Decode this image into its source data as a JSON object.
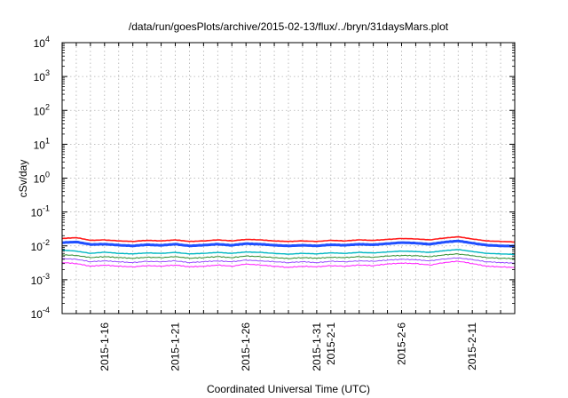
{
  "chart_data": {
    "type": "line",
    "title": "/data/run/goesPlots/archive/2015-02-13/flux/../bryn/31daysMars.plot",
    "xlabel": "Coordinated Universal Time (UTC)",
    "ylabel": "cSv/day",
    "yscale": "log",
    "ylim": [
      0.0001,
      10000
    ],
    "xlim": [
      "2015-01-13",
      "2015-02-14"
    ],
    "grid": true,
    "y_ticks": [
      {
        "base": "10",
        "exp": "4",
        "value": 10000
      },
      {
        "base": "10",
        "exp": "3",
        "value": 1000
      },
      {
        "base": "10",
        "exp": "2",
        "value": 100
      },
      {
        "base": "10",
        "exp": "1",
        "value": 10
      },
      {
        "base": "10",
        "exp": "0",
        "value": 1
      },
      {
        "base": "10",
        "exp": "-1",
        "value": 0.1
      },
      {
        "base": "10",
        "exp": "-2",
        "value": 0.01
      },
      {
        "base": "10",
        "exp": "-3",
        "value": 0.001
      },
      {
        "base": "10",
        "exp": "-4",
        "value": 0.0001
      }
    ],
    "x_ticks": [
      "2015-1-16",
      "2015-1-21",
      "2015-1-26",
      "2015-1-31",
      "2015-2-1",
      "2015-2-6",
      "2015-2-11"
    ],
    "series_style": [
      {
        "color": "#ff1a1a",
        "width": 1.6
      },
      {
        "color": "#1f4fff",
        "width": 3.0
      },
      {
        "color": "#00b7c3",
        "width": 1.4
      },
      {
        "color": "#2e8b2e",
        "width": 1.0
      },
      {
        "color": "#9a4dff",
        "width": 1.0
      },
      {
        "color": "#ff1aff",
        "width": 1.0
      }
    ],
    "series": [
      {
        "values": [
          [
            "2015-01-13",
            0.0165
          ],
          [
            "2015-01-14",
            0.0175
          ],
          [
            "2015-01-15",
            0.0145
          ],
          [
            "2015-01-16",
            0.015
          ],
          [
            "2015-01-17",
            0.014
          ],
          [
            "2015-01-18",
            0.0135
          ],
          [
            "2015-01-19",
            0.0145
          ],
          [
            "2015-01-20",
            0.014
          ],
          [
            "2015-01-21",
            0.015
          ],
          [
            "2015-01-22",
            0.0135
          ],
          [
            "2015-01-23",
            0.014
          ],
          [
            "2015-01-24",
            0.015
          ],
          [
            "2015-01-25",
            0.014
          ],
          [
            "2015-01-26",
            0.0155
          ],
          [
            "2015-01-27",
            0.015
          ],
          [
            "2015-01-28",
            0.014
          ],
          [
            "2015-01-29",
            0.0135
          ],
          [
            "2015-01-30",
            0.014
          ],
          [
            "2015-01-31",
            0.0135
          ],
          [
            "2015-02-01",
            0.0145
          ],
          [
            "2015-02-02",
            0.014
          ],
          [
            "2015-02-03",
            0.015
          ],
          [
            "2015-02-04",
            0.0145
          ],
          [
            "2015-02-05",
            0.0155
          ],
          [
            "2015-02-06",
            0.0165
          ],
          [
            "2015-02-07",
            0.016
          ],
          [
            "2015-02-08",
            0.015
          ],
          [
            "2015-02-09",
            0.017
          ],
          [
            "2015-02-10",
            0.0185
          ],
          [
            "2015-02-11",
            0.016
          ],
          [
            "2015-02-12",
            0.014
          ],
          [
            "2015-02-13",
            0.0135
          ],
          [
            "2015-02-14",
            0.013
          ]
        ]
      },
      {
        "values": [
          [
            "2015-01-13",
            0.0125
          ],
          [
            "2015-01-14",
            0.013
          ],
          [
            "2015-01-15",
            0.011
          ],
          [
            "2015-01-16",
            0.0112
          ],
          [
            "2015-01-17",
            0.0105
          ],
          [
            "2015-01-18",
            0.01
          ],
          [
            "2015-01-19",
            0.0108
          ],
          [
            "2015-01-20",
            0.0104
          ],
          [
            "2015-01-21",
            0.0112
          ],
          [
            "2015-01-22",
            0.01
          ],
          [
            "2015-01-23",
            0.0105
          ],
          [
            "2015-01-24",
            0.0112
          ],
          [
            "2015-01-25",
            0.0104
          ],
          [
            "2015-01-26",
            0.0116
          ],
          [
            "2015-01-27",
            0.0112
          ],
          [
            "2015-01-28",
            0.0104
          ],
          [
            "2015-01-29",
            0.01
          ],
          [
            "2015-01-30",
            0.0104
          ],
          [
            "2015-01-31",
            0.01
          ],
          [
            "2015-02-01",
            0.0108
          ],
          [
            "2015-02-02",
            0.0104
          ],
          [
            "2015-02-03",
            0.0112
          ],
          [
            "2015-02-04",
            0.0108
          ],
          [
            "2015-02-05",
            0.0116
          ],
          [
            "2015-02-06",
            0.0125
          ],
          [
            "2015-02-07",
            0.012
          ],
          [
            "2015-02-08",
            0.0112
          ],
          [
            "2015-02-09",
            0.0128
          ],
          [
            "2015-02-10",
            0.014
          ],
          [
            "2015-02-11",
            0.012
          ],
          [
            "2015-02-12",
            0.0105
          ],
          [
            "2015-02-13",
            0.01
          ],
          [
            "2015-02-14",
            0.0098
          ]
        ]
      },
      {
        "values": [
          [
            "2015-01-13",
            0.0075
          ],
          [
            "2015-01-14",
            0.007
          ],
          [
            "2015-01-15",
            0.006
          ],
          [
            "2015-01-16",
            0.0065
          ],
          [
            "2015-01-17",
            0.006
          ],
          [
            "2015-01-18",
            0.0058
          ],
          [
            "2015-01-19",
            0.0062
          ],
          [
            "2015-01-20",
            0.006
          ],
          [
            "2015-01-21",
            0.0064
          ],
          [
            "2015-01-22",
            0.0058
          ],
          [
            "2015-01-23",
            0.006
          ],
          [
            "2015-01-24",
            0.0064
          ],
          [
            "2015-01-25",
            0.006
          ],
          [
            "2015-01-26",
            0.0066
          ],
          [
            "2015-01-27",
            0.0064
          ],
          [
            "2015-01-28",
            0.006
          ],
          [
            "2015-01-29",
            0.0057
          ],
          [
            "2015-01-30",
            0.006
          ],
          [
            "2015-01-31",
            0.0058
          ],
          [
            "2015-02-01",
            0.0062
          ],
          [
            "2015-02-02",
            0.006
          ],
          [
            "2015-02-03",
            0.0064
          ],
          [
            "2015-02-04",
            0.0062
          ],
          [
            "2015-02-05",
            0.0066
          ],
          [
            "2015-02-06",
            0.007
          ],
          [
            "2015-02-07",
            0.0068
          ],
          [
            "2015-02-08",
            0.0064
          ],
          [
            "2015-02-09",
            0.0072
          ],
          [
            "2015-02-10",
            0.0078
          ],
          [
            "2015-02-11",
            0.0068
          ],
          [
            "2015-02-12",
            0.006
          ],
          [
            "2015-02-13",
            0.0058
          ],
          [
            "2015-02-14",
            0.0056
          ]
        ]
      },
      {
        "values": [
          [
            "2015-01-13",
            0.0055
          ],
          [
            "2015-01-14",
            0.0052
          ],
          [
            "2015-01-15",
            0.0045
          ],
          [
            "2015-01-16",
            0.0048
          ],
          [
            "2015-01-17",
            0.0045
          ],
          [
            "2015-01-18",
            0.0043
          ],
          [
            "2015-01-19",
            0.0046
          ],
          [
            "2015-01-20",
            0.0045
          ],
          [
            "2015-01-21",
            0.0048
          ],
          [
            "2015-01-22",
            0.0043
          ],
          [
            "2015-01-23",
            0.0045
          ],
          [
            "2015-01-24",
            0.0048
          ],
          [
            "2015-01-25",
            0.0045
          ],
          [
            "2015-01-26",
            0.005
          ],
          [
            "2015-01-27",
            0.0048
          ],
          [
            "2015-01-28",
            0.0045
          ],
          [
            "2015-01-29",
            0.0042
          ],
          [
            "2015-01-30",
            0.0045
          ],
          [
            "2015-01-31",
            0.0043
          ],
          [
            "2015-02-01",
            0.0046
          ],
          [
            "2015-02-02",
            0.0045
          ],
          [
            "2015-02-03",
            0.0048
          ],
          [
            "2015-02-04",
            0.0046
          ],
          [
            "2015-02-05",
            0.005
          ],
          [
            "2015-02-06",
            0.0052
          ],
          [
            "2015-02-07",
            0.0051
          ],
          [
            "2015-02-08",
            0.0048
          ],
          [
            "2015-02-09",
            0.0054
          ],
          [
            "2015-02-10",
            0.0058
          ],
          [
            "2015-02-11",
            0.0051
          ],
          [
            "2015-02-12",
            0.0045
          ],
          [
            "2015-02-13",
            0.0043
          ],
          [
            "2015-02-14",
            0.0042
          ]
        ]
      },
      {
        "values": [
          [
            "2015-01-13",
            0.0042
          ],
          [
            "2015-01-14",
            0.004
          ],
          [
            "2015-01-15",
            0.0034
          ],
          [
            "2015-01-16",
            0.0036
          ],
          [
            "2015-01-17",
            0.0034
          ],
          [
            "2015-01-18",
            0.0032
          ],
          [
            "2015-01-19",
            0.0035
          ],
          [
            "2015-01-20",
            0.0034
          ],
          [
            "2015-01-21",
            0.0036
          ],
          [
            "2015-01-22",
            0.0032
          ],
          [
            "2015-01-23",
            0.0034
          ],
          [
            "2015-01-24",
            0.0036
          ],
          [
            "2015-01-25",
            0.0034
          ],
          [
            "2015-01-26",
            0.0038
          ],
          [
            "2015-01-27",
            0.0036
          ],
          [
            "2015-01-28",
            0.0034
          ],
          [
            "2015-01-29",
            0.0032
          ],
          [
            "2015-01-30",
            0.0034
          ],
          [
            "2015-01-31",
            0.0032
          ],
          [
            "2015-02-01",
            0.0035
          ],
          [
            "2015-02-02",
            0.0034
          ],
          [
            "2015-02-03",
            0.0036
          ],
          [
            "2015-02-04",
            0.0035
          ],
          [
            "2015-02-05",
            0.0038
          ],
          [
            "2015-02-06",
            0.004
          ],
          [
            "2015-02-07",
            0.0039
          ],
          [
            "2015-02-08",
            0.0036
          ],
          [
            "2015-02-09",
            0.0041
          ],
          [
            "2015-02-10",
            0.0044
          ],
          [
            "2015-02-11",
            0.0039
          ],
          [
            "2015-02-12",
            0.0034
          ],
          [
            "2015-02-13",
            0.0032
          ],
          [
            "2015-02-14",
            0.0031
          ]
        ]
      },
      {
        "values": [
          [
            "2015-01-13",
            0.0032
          ],
          [
            "2015-01-14",
            0.003
          ],
          [
            "2015-01-15",
            0.0025
          ],
          [
            "2015-01-16",
            0.0027
          ],
          [
            "2015-01-17",
            0.0025
          ],
          [
            "2015-01-18",
            0.0024
          ],
          [
            "2015-01-19",
            0.0026
          ],
          [
            "2015-01-20",
            0.0025
          ],
          [
            "2015-01-21",
            0.0027
          ],
          [
            "2015-01-22",
            0.0024
          ],
          [
            "2015-01-23",
            0.0025
          ],
          [
            "2015-01-24",
            0.0027
          ],
          [
            "2015-01-25",
            0.0025
          ],
          [
            "2015-01-26",
            0.0029
          ],
          [
            "2015-01-27",
            0.0027
          ],
          [
            "2015-01-28",
            0.0025
          ],
          [
            "2015-01-29",
            0.0023
          ],
          [
            "2015-01-30",
            0.0025
          ],
          [
            "2015-01-31",
            0.0024
          ],
          [
            "2015-02-01",
            0.0026
          ],
          [
            "2015-02-02",
            0.0025
          ],
          [
            "2015-02-03",
            0.0027
          ],
          [
            "2015-02-04",
            0.0026
          ],
          [
            "2015-02-05",
            0.0029
          ],
          [
            "2015-02-06",
            0.0031
          ],
          [
            "2015-02-07",
            0.003
          ],
          [
            "2015-02-08",
            0.0027
          ],
          [
            "2015-02-09",
            0.0032
          ],
          [
            "2015-02-10",
            0.0035
          ],
          [
            "2015-02-11",
            0.003
          ],
          [
            "2015-02-12",
            0.0025
          ],
          [
            "2015-02-13",
            0.0024
          ],
          [
            "2015-02-14",
            0.0023
          ]
        ]
      }
    ]
  }
}
